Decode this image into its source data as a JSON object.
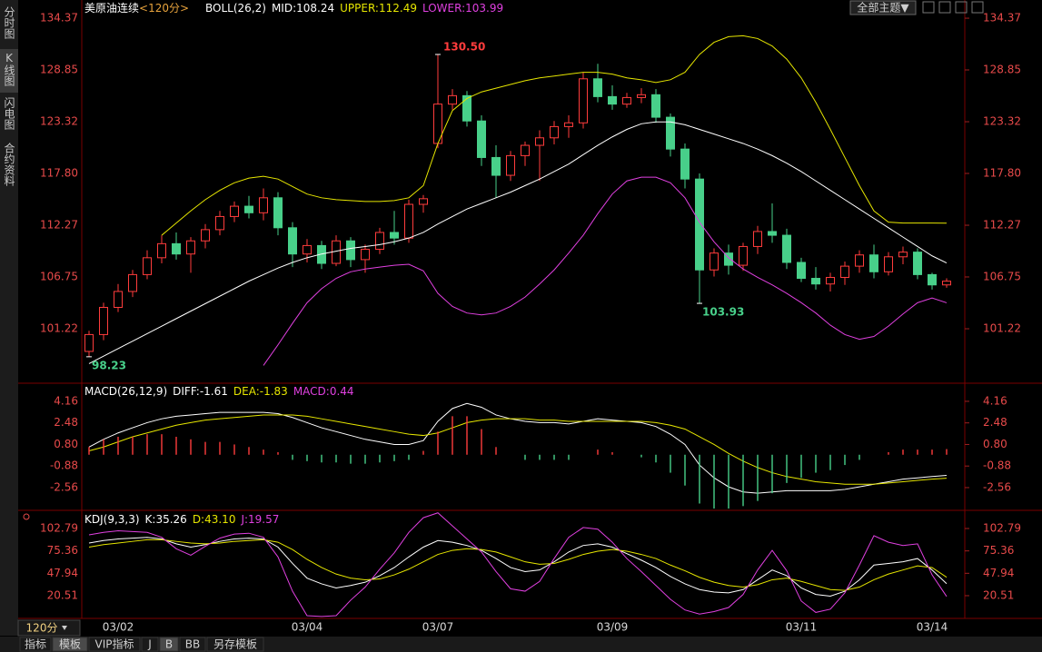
{
  "ui": {
    "side_tabs": [
      "分时图",
      "K线图",
      "闪电图",
      "合约资料"
    ],
    "active_side_tab": 1,
    "theme_button": "全部主题▼",
    "period_selector": "120分",
    "bottom_tabs": [
      "指标",
      "模板",
      "VIP指标",
      "J",
      "B",
      "BB",
      "另存模板"
    ],
    "active_bottom_tabs": [
      1,
      4
    ]
  },
  "chart_data": [
    {
      "type": "candlestick",
      "title": "美原油连续",
      "period": "<120分>",
      "period_color": "#e6a23c",
      "indicator": "BOLL(26,2)",
      "up_color": "#ff3c3c",
      "down_color": "#48d08a",
      "categories": [
        null,
        null,
        "03/02",
        null,
        null,
        null,
        null,
        null,
        null,
        null,
        null,
        null,
        null,
        null,
        null,
        "03/04",
        null,
        null,
        null,
        null,
        null,
        null,
        null,
        null,
        "03/07",
        null,
        null,
        null,
        null,
        null,
        null,
        null,
        null,
        null,
        null,
        null,
        "03/09",
        null,
        null,
        null,
        null,
        null,
        null,
        null,
        null,
        null,
        null,
        null,
        null,
        "03/11",
        null,
        null,
        null,
        null,
        null,
        null,
        null,
        null,
        "03/14",
        null
      ],
      "open": [
        98.8,
        100.6,
        103.5,
        105.2,
        107.0,
        108.8,
        110.3,
        109.2,
        110.6,
        111.8,
        113.2,
        114.3,
        113.6,
        115.2,
        112.0,
        109.2,
        110.1,
        108.2,
        110.6,
        108.6,
        109.7,
        111.5,
        110.9,
        114.5,
        121.0,
        125.2,
        126.1,
        123.4,
        119.5,
        117.6,
        119.7,
        120.8,
        121.6,
        122.8,
        123.2,
        127.9,
        126.0,
        125.2,
        125.9,
        126.2,
        123.8,
        120.4,
        117.2,
        107.5,
        109.3,
        108.0,
        110.0,
        111.6,
        111.2,
        108.3,
        106.6,
        106.0,
        106.7,
        107.9,
        109.1,
        107.3,
        108.9,
        109.4,
        107.0,
        105.9
      ],
      "high": [
        101.0,
        104.0,
        106.0,
        107.5,
        109.6,
        111.2,
        111.5,
        111.0,
        112.4,
        113.8,
        114.8,
        115.4,
        116.2,
        115.8,
        112.6,
        110.8,
        110.6,
        111.2,
        111.0,
        110.2,
        112.0,
        113.8,
        115.0,
        115.5,
        130.5,
        126.8,
        126.6,
        124.0,
        120.8,
        120.2,
        121.2,
        122.4,
        123.4,
        124.0,
        128.6,
        129.5,
        127.2,
        126.4,
        126.9,
        126.8,
        124.2,
        121.0,
        117.8,
        109.8,
        110.2,
        110.4,
        112.2,
        114.6,
        111.9,
        108.8,
        107.8,
        107.2,
        108.4,
        109.6,
        110.2,
        109.4,
        110.0,
        109.8,
        107.2,
        106.6
      ],
      "low": [
        98.23,
        100.0,
        103.0,
        104.6,
        106.5,
        108.2,
        108.6,
        107.2,
        109.8,
        111.2,
        112.6,
        113.0,
        112.8,
        111.2,
        107.8,
        108.3,
        107.6,
        107.9,
        107.8,
        107.2,
        109.2,
        110.2,
        110.4,
        113.6,
        120.5,
        124.6,
        122.8,
        118.6,
        115.2,
        117.0,
        118.6,
        117.0,
        120.9,
        121.6,
        122.6,
        125.4,
        124.6,
        124.8,
        125.3,
        123.2,
        119.6,
        116.2,
        103.93,
        106.8,
        107.0,
        107.4,
        109.2,
        110.4,
        107.6,
        106.2,
        105.4,
        105.2,
        105.9,
        107.2,
        106.6,
        106.9,
        108.1,
        106.5,
        105.4,
        105.6
      ],
      "close": [
        100.6,
        103.5,
        105.2,
        107.0,
        108.8,
        110.3,
        109.2,
        110.6,
        111.8,
        113.2,
        114.3,
        113.6,
        115.2,
        112.0,
        109.2,
        110.1,
        108.2,
        110.6,
        108.6,
        109.7,
        111.5,
        110.9,
        114.5,
        115.1,
        125.2,
        126.1,
        123.4,
        119.5,
        117.6,
        119.7,
        120.8,
        121.6,
        122.8,
        123.2,
        127.9,
        126.0,
        125.2,
        125.9,
        126.2,
        123.8,
        120.4,
        117.2,
        107.5,
        109.3,
        108.0,
        110.0,
        111.6,
        111.2,
        108.3,
        106.6,
        106.0,
        106.7,
        107.9,
        109.1,
        107.3,
        108.9,
        109.4,
        107.0,
        105.9,
        106.3
      ],
      "series": [
        {
          "name": "MID:108.24",
          "color": "#ffffff",
          "values": [
            97.5,
            98.3,
            99.1,
            99.9,
            100.7,
            101.5,
            102.3,
            103.1,
            103.9,
            104.7,
            105.5,
            106.3,
            107.0,
            107.7,
            108.3,
            108.8,
            109.2,
            109.5,
            109.8,
            110.0,
            110.2,
            110.5,
            110.9,
            111.5,
            112.4,
            113.2,
            114.0,
            114.6,
            115.2,
            115.8,
            116.5,
            117.2,
            118.0,
            118.8,
            119.8,
            120.8,
            121.7,
            122.5,
            123.1,
            123.3,
            123.3,
            123.0,
            122.5,
            122.0,
            121.5,
            121.0,
            120.4,
            119.7,
            118.9,
            118.0,
            117.0,
            116.0,
            115.0,
            114.0,
            113.0,
            112.0,
            111.0,
            110.0,
            109.0,
            108.24
          ]
        },
        {
          "name": "UPPER:112.49",
          "color": "#e6e600",
          "values": [
            null,
            null,
            null,
            null,
            null,
            111.2,
            112.5,
            113.8,
            115.0,
            116.0,
            116.8,
            117.3,
            117.5,
            117.2,
            116.4,
            115.6,
            115.2,
            115.0,
            114.9,
            114.8,
            114.8,
            114.9,
            115.2,
            116.5,
            121.0,
            124.5,
            125.8,
            126.5,
            126.9,
            127.3,
            127.7,
            128.0,
            128.2,
            128.4,
            128.6,
            128.6,
            128.4,
            128.0,
            127.8,
            127.5,
            127.8,
            128.6,
            130.5,
            131.8,
            132.4,
            132.5,
            132.2,
            131.4,
            130.0,
            128.0,
            125.4,
            122.5,
            119.5,
            116.5,
            113.8,
            112.6,
            112.5,
            112.5,
            112.5,
            112.49
          ]
        },
        {
          "name": "LOWER:103.99",
          "color": "#e040e0",
          "values": [
            null,
            null,
            null,
            null,
            null,
            null,
            null,
            null,
            null,
            null,
            null,
            null,
            97.3,
            99.5,
            101.8,
            104.0,
            105.5,
            106.6,
            107.3,
            107.6,
            107.8,
            108.0,
            108.1,
            107.4,
            105.0,
            103.6,
            102.9,
            102.7,
            102.9,
            103.6,
            104.6,
            106.0,
            107.5,
            109.3,
            111.2,
            113.5,
            115.6,
            117.0,
            117.4,
            117.4,
            116.8,
            115.2,
            112.6,
            110.5,
            108.8,
            107.6,
            106.7,
            105.9,
            105.0,
            104.0,
            102.9,
            101.6,
            100.6,
            100.1,
            100.4,
            101.5,
            102.8,
            104.0,
            104.5,
            103.99
          ]
        }
      ],
      "annotations": [
        {
          "value": 130.5,
          "label": "130.50"
        },
        98.23,
        103.93
      ],
      "ylim": [
        95.6,
        135.15
      ],
      "yticks": [
        101.22,
        106.75,
        112.27,
        {
          "value": 117.8,
          "label": "117.80"
        },
        123.32,
        128.85,
        134.37
      ]
    },
    {
      "type": "macd",
      "indicator": "MACD(26,12,9)",
      "up_color": "#ff3c3c",
      "down_color": "#48d08a",
      "series": [
        {
          "name": "DIFF:-1.61",
          "color": "#ffffff",
          "values": [
            0.6,
            1.2,
            1.7,
            2.1,
            2.5,
            2.8,
            3.0,
            3.1,
            3.2,
            3.3,
            3.3,
            3.3,
            3.3,
            3.2,
            2.9,
            2.5,
            2.1,
            1.8,
            1.5,
            1.2,
            1.0,
            0.8,
            0.8,
            1.1,
            2.6,
            3.6,
            4.0,
            3.7,
            3.1,
            2.8,
            2.6,
            2.5,
            2.5,
            2.4,
            2.6,
            2.8,
            2.7,
            2.6,
            2.5,
            2.2,
            1.6,
            0.8,
            -0.8,
            -1.8,
            -2.5,
            -2.9,
            -3.0,
            -2.9,
            -2.8,
            -2.8,
            -2.8,
            -2.8,
            -2.7,
            -2.5,
            -2.3,
            -2.1,
            -1.9,
            -1.8,
            -1.7,
            -1.61
          ]
        },
        {
          "name": "DEA:-1.83",
          "color": "#e6e600",
          "values": [
            0.3,
            0.6,
            1.0,
            1.4,
            1.7,
            2.0,
            2.3,
            2.5,
            2.7,
            2.8,
            2.9,
            3.0,
            3.1,
            3.1,
            3.1,
            3.0,
            2.8,
            2.6,
            2.4,
            2.2,
            2.0,
            1.8,
            1.6,
            1.5,
            1.7,
            2.1,
            2.5,
            2.7,
            2.8,
            2.8,
            2.8,
            2.7,
            2.7,
            2.6,
            2.6,
            2.6,
            2.6,
            2.6,
            2.6,
            2.5,
            2.3,
            2.0,
            1.4,
            0.8,
            0.1,
            -0.5,
            -1.0,
            -1.4,
            -1.7,
            -1.9,
            -2.1,
            -2.2,
            -2.3,
            -2.3,
            -2.3,
            -2.2,
            -2.1,
            -2.0,
            -1.9,
            -1.83
          ]
        },
        {
          "name": "MACD:0.44",
          "color": "#e040e0",
          "kind": "bar",
          "values": [
            0.6,
            1.2,
            1.4,
            1.4,
            1.6,
            1.6,
            1.4,
            1.2,
            1.0,
            1.0,
            0.8,
            0.6,
            0.4,
            0.2,
            -0.4,
            -0.5,
            -0.6,
            -0.6,
            -0.7,
            -0.7,
            -0.6,
            -0.5,
            -0.4,
            0.3,
            1.8,
            3.0,
            3.0,
            2.0,
            0.6,
            0.0,
            -0.4,
            -0.4,
            -0.4,
            -0.4,
            0.0,
            0.4,
            0.2,
            0.0,
            -0.2,
            -0.6,
            -1.4,
            -2.4,
            -3.8,
            -4.2,
            -4.2,
            -4.0,
            -3.6,
            -3.0,
            -2.2,
            -1.8,
            -1.4,
            -1.2,
            -0.8,
            -0.4,
            0.0,
            0.2,
            0.4,
            0.4,
            0.4,
            0.44
          ]
        }
      ],
      "ylim": [
        -4.19,
        5.43
      ],
      "yticks": [
        -2.56,
        -0.88,
        {
          "value": 0.8,
          "label": "0.80"
        },
        2.48,
        4.16
      ]
    },
    {
      "type": "kdj",
      "indicator": "KDJ(9,3,3)",
      "series": [
        {
          "name": "K:35.26",
          "color": "#ffffff",
          "values": [
            85,
            88,
            90,
            91,
            92,
            90,
            84,
            80,
            83,
            87,
            90,
            91,
            90,
            80,
            60,
            42,
            35,
            30,
            33,
            37,
            45,
            55,
            68,
            80,
            88,
            86,
            82,
            76,
            66,
            55,
            50,
            52,
            62,
            74,
            82,
            84,
            80,
            72,
            64,
            55,
            44,
            35,
            28,
            25,
            24,
            28,
            40,
            52,
            45,
            30,
            22,
            20,
            26,
            40,
            58,
            60,
            62,
            66,
            52,
            35.26
          ]
        },
        {
          "name": "D:43.10",
          "color": "#e6e600",
          "values": [
            80,
            83,
            85,
            87,
            89,
            89,
            87,
            85,
            84,
            85,
            87,
            88,
            89,
            86,
            77,
            65,
            55,
            47,
            42,
            40,
            41,
            46,
            53,
            62,
            71,
            76,
            78,
            77,
            74,
            68,
            62,
            59,
            60,
            65,
            71,
            75,
            77,
            75,
            71,
            66,
            58,
            51,
            43,
            37,
            33,
            31,
            34,
            40,
            42,
            38,
            33,
            28,
            27,
            31,
            40,
            47,
            52,
            57,
            55,
            43.1
          ]
        },
        {
          "name": "J:19.57",
          "color": "#e040e0",
          "values": [
            95,
            98,
            100,
            99,
            98,
            92,
            78,
            70,
            81,
            91,
            96,
            97,
            92,
            68,
            26,
            -4,
            -5,
            -4,
            15,
            31,
            53,
            73,
            98,
            116,
            122,
            106,
            90,
            74,
            50,
            29,
            26,
            38,
            66,
            92,
            104,
            102,
            86,
            66,
            50,
            33,
            16,
            3,
            -2,
            1,
            6,
            22,
            52,
            76,
            51,
            14,
            0,
            4,
            24,
            58,
            94,
            86,
            82,
            84,
            46,
            19.57
          ]
        }
      ],
      "ylim": [
        -6.2,
        122.8
      ],
      "yticks": [
        20.51,
        47.94,
        75.36,
        102.79
      ]
    }
  ]
}
